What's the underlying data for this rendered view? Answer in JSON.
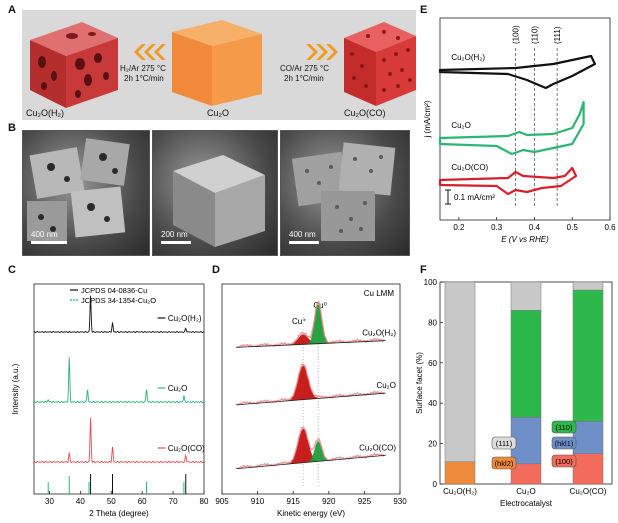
{
  "panel_labels": {
    "a": "A",
    "b": "B",
    "c": "C",
    "d": "D",
    "e": "E",
    "f": "F"
  },
  "panel_a": {
    "left_product": "Cu₂O(H₂)",
    "center": "Cu₂O",
    "right_product": "Cu₂O(CO)",
    "left_condition_1": "H₂/Ar 275 °C",
    "left_condition_2": "2h 1°C/min",
    "right_condition_1": "CO/Ar 275 °C",
    "right_condition_2": "2h 1°C/min",
    "colors": {
      "left_cube": "#c83a3a",
      "center_cube": "#f08a3a",
      "right_sponge": "#d83a3a",
      "arrow": "#f29a1e",
      "background": "#d9d9d9"
    }
  },
  "panel_b": {
    "scale_1": "400 nm",
    "scale_2": "200 nm",
    "scale_3": "400 nm"
  },
  "chart_data": [
    {
      "panel": "C",
      "type": "line",
      "xlabel": "2 Theta (degree)",
      "ylabel": "Intensity (a.u.)",
      "xlim": [
        25,
        80
      ],
      "xticks": [
        30,
        40,
        50,
        60,
        70,
        80
      ],
      "legend": [
        "JCPDS 04-0836-Cu",
        "JCPDS 34-1354-Cu₂O"
      ],
      "series": [
        {
          "name": "Cu₂O(H₂)",
          "color": "#111111",
          "peaks": [
            [
              43.3,
              1.0
            ],
            [
              50.4,
              0.25
            ],
            [
              74.1,
              0.1
            ]
          ]
        },
        {
          "name": "Cu₂O",
          "color": "#2bb673",
          "peaks": [
            [
              29.6,
              0.05
            ],
            [
              36.4,
              1.0
            ],
            [
              42.3,
              0.3
            ],
            [
              61.4,
              0.3
            ],
            [
              73.5,
              0.15
            ]
          ]
        },
        {
          "name": "Cu₂O(CO)",
          "color": "#e84c4c",
          "peaks": [
            [
              36.4,
              0.2
            ],
            [
              43.3,
              1.0
            ],
            [
              50.4,
              0.35
            ],
            [
              74.1,
              0.15
            ]
          ]
        }
      ],
      "reference_cu": [
        43.3,
        50.4,
        74.1
      ],
      "reference_cu2o": [
        29.6,
        36.4,
        42.3,
        61.4,
        73.5
      ]
    },
    {
      "panel": "D",
      "type": "line",
      "title": "Cu LMM",
      "xlabel": "Kinetic energy (eV)",
      "xlim": [
        905,
        930
      ],
      "xticks": [
        905,
        910,
        915,
        920,
        925,
        930
      ],
      "peak_labels": [
        "Cu⁺",
        "Cu⁰"
      ],
      "peak_positions": {
        "cu_plus": 916.4,
        "cu_zero": 918.5
      },
      "series": [
        {
          "name": "Cu₂O(H₂)",
          "cu_plus": 0.25,
          "cu_zero": 1.0
        },
        {
          "name": "Cu₂O",
          "cu_plus": 1.0,
          "cu_zero": 0.0
        },
        {
          "name": "Cu₂O(CO)",
          "cu_plus": 1.0,
          "cu_zero": 0.6
        }
      ],
      "colors": {
        "cu_plus": "#c81e1e",
        "cu_zero": "#1f9d3a",
        "envelope": "#e87d7d"
      }
    },
    {
      "panel": "E",
      "type": "line",
      "xlabel": "E (V vs RHE)",
      "ylabel": "j (mA/cm²)",
      "xlim": [
        0.15,
        0.6
      ],
      "xticks": [
        0.2,
        0.3,
        0.4,
        0.5,
        0.6
      ],
      "scale_bar": "0.1 mA/cm²",
      "facet_lines": [
        {
          "label": "(100)",
          "x": 0.35
        },
        {
          "label": "(110)",
          "x": 0.4
        },
        {
          "label": "(111)",
          "x": 0.46
        }
      ],
      "series": [
        {
          "name": "Cu₂O(H₂)",
          "color": "#111111",
          "xmax": 0.56
        },
        {
          "name": "Cu₂O",
          "color": "#2bb673",
          "xmax": 0.53
        },
        {
          "name": "Cu₂O(CO)",
          "color": "#d8202a",
          "xmax": 0.51
        }
      ]
    },
    {
      "panel": "F",
      "type": "bar",
      "xlabel": "Electrocatalyst",
      "ylabel": "Surface facet (%)",
      "ylim": [
        0,
        100
      ],
      "yticks": [
        0,
        20,
        40,
        60,
        80,
        100
      ],
      "categories": [
        "Cu₂O(H₂)",
        "Cu₂O",
        "Cu₂O(CO)"
      ],
      "series": [
        {
          "name": "(100)",
          "color": "#f26b5b",
          "values": [
            0,
            10,
            15
          ]
        },
        {
          "name": "hkl1",
          "color": "#6f8fc9",
          "values": [
            0,
            23,
            16
          ]
        },
        {
          "name": "(110)",
          "color": "#2db84c",
          "values": [
            0,
            53,
            65
          ]
        },
        {
          "name": "hkl2",
          "color": "#ee8a3c",
          "values": [
            11,
            0,
            0
          ]
        },
        {
          "name": "(111)",
          "color": "#c8c8c8",
          "values": [
            89,
            14,
            4
          ]
        }
      ],
      "labels": {
        "l111": "(111)",
        "lhkl2": "(hkl2)",
        "l110": "(110)",
        "lhkl1": "(hkl1)",
        "l100": "(100)"
      }
    }
  ]
}
